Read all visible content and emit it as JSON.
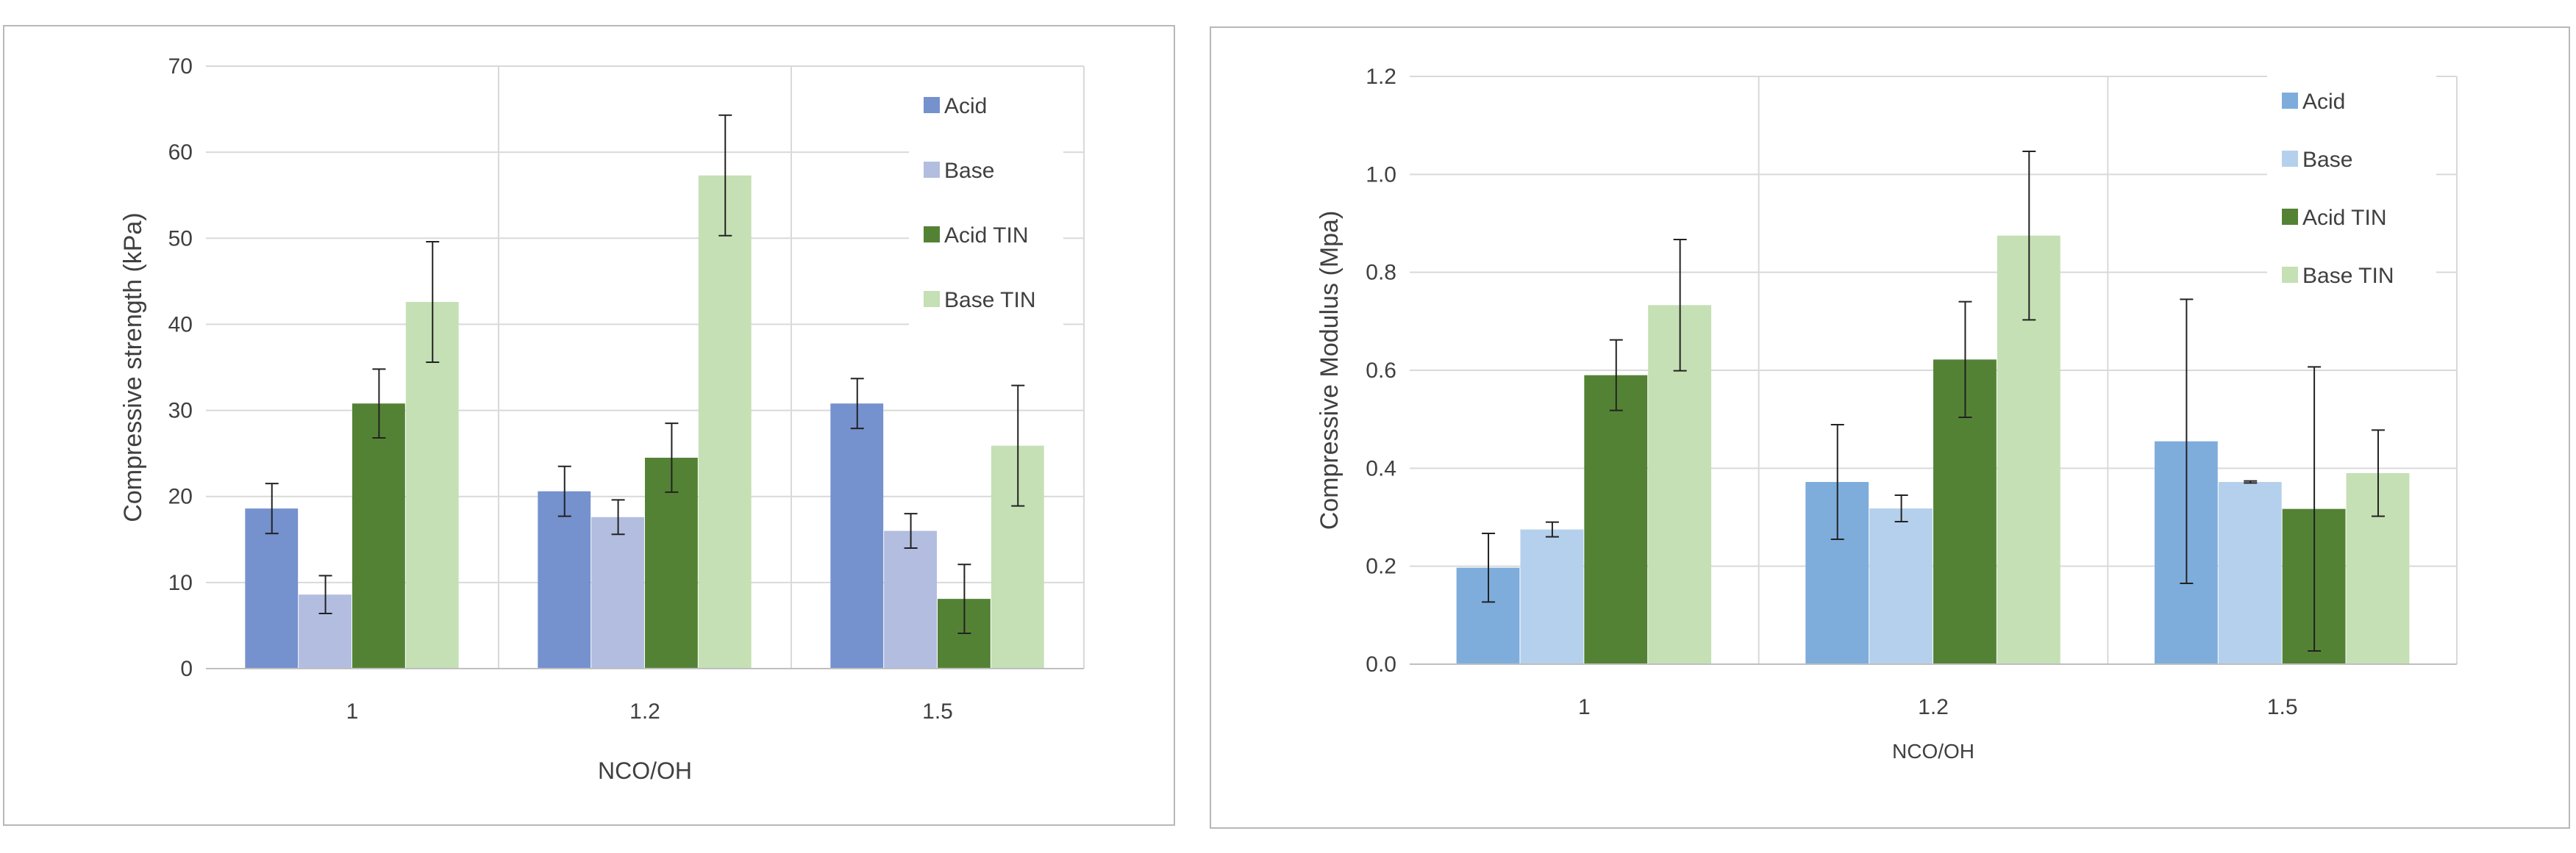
{
  "chart_data": [
    {
      "type": "bar",
      "categories": [
        "1",
        "1.2",
        "1.5"
      ],
      "title": "",
      "xlabel": "NCO/OH",
      "ylabel": "Compressive strength (kPa)",
      "ylim": [
        0,
        70
      ],
      "yticks": [
        "0",
        "10",
        "20",
        "30",
        "40",
        "50",
        "60",
        "70"
      ],
      "grid": true,
      "legend_position": "top-right",
      "series": [
        {
          "name": "Acid",
          "color": "#7591ce",
          "values": [
            18.6,
            20.6,
            30.8
          ],
          "errors": [
            2.9,
            2.9,
            2.9
          ]
        },
        {
          "name": "Base",
          "color": "#b2bde0",
          "values": [
            8.6,
            17.6,
            16.0
          ],
          "errors": [
            2.2,
            2.0,
            2.0
          ]
        },
        {
          "name": "Acid TIN",
          "color": "#548235",
          "values": [
            30.8,
            24.5,
            8.1
          ],
          "errors": [
            4.0,
            4.0,
            4.0
          ]
        },
        {
          "name": "Base TIN",
          "color": "#c5e0b4",
          "values": [
            42.6,
            57.3,
            25.9
          ],
          "errors": [
            7.0,
            7.0,
            7.0
          ]
        }
      ]
    },
    {
      "type": "bar",
      "categories": [
        "1",
        "1.2",
        "1.5"
      ],
      "title": "",
      "xlabel": "NCO/OH",
      "ylabel": "Compressive Modulus (Mpa)",
      "ylim": [
        0,
        1.2
      ],
      "yticks": [
        "0.0",
        "0.2",
        "0.4",
        "0.6",
        "0.8",
        "1.0",
        "1.2"
      ],
      "grid": true,
      "legend_position": "top-right",
      "series": [
        {
          "name": "Acid",
          "color": "#7eaddc",
          "values": [
            0.197,
            0.372,
            0.455
          ],
          "errors": [
            0.07,
            0.117,
            0.29
          ]
        },
        {
          "name": "Base",
          "color": "#b5d0ec",
          "values": [
            0.275,
            0.318,
            0.372
          ],
          "errors": [
            0.015,
            0.027,
            0.002
          ]
        },
        {
          "name": "Acid TIN",
          "color": "#548235",
          "values": [
            0.59,
            0.622,
            0.317
          ],
          "errors": [
            0.072,
            0.118,
            0.29
          ]
        },
        {
          "name": "Base TIN",
          "color": "#c5e0b4",
          "values": [
            0.733,
            0.875,
            0.39
          ],
          "errors": [
            0.134,
            0.172,
            0.088
          ]
        }
      ]
    }
  ]
}
